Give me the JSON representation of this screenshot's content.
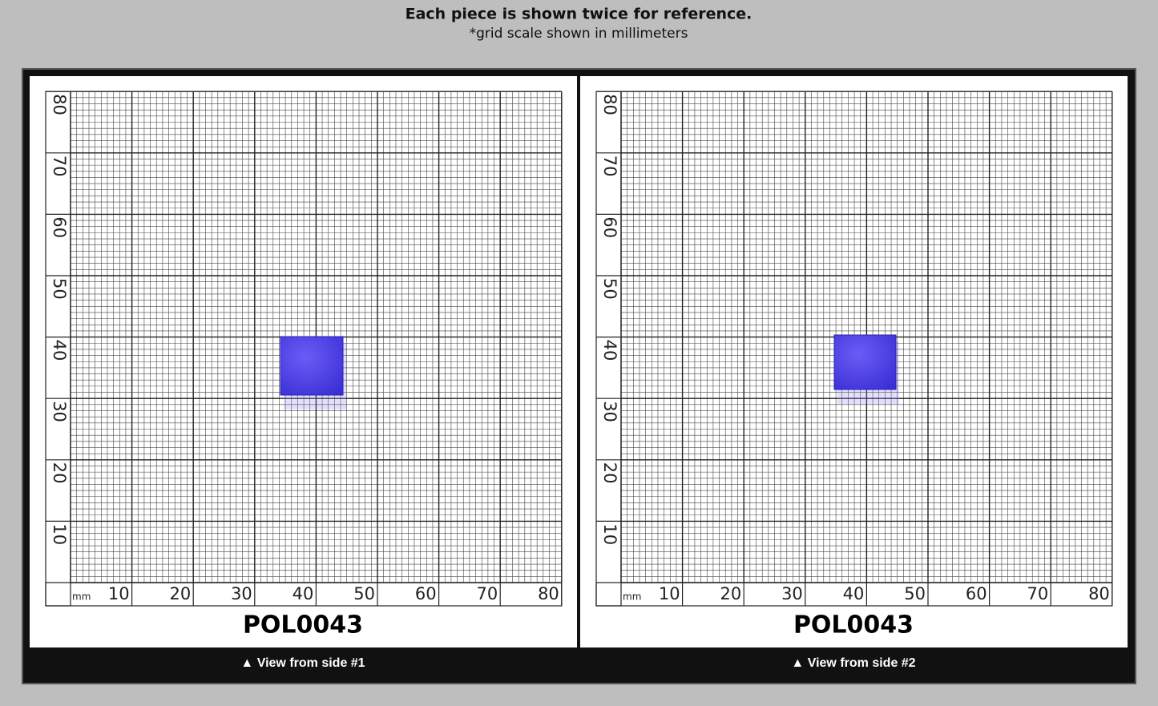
{
  "header": {
    "title": "Each piece is shown twice for reference.",
    "subtitle": "*grid scale shown in millimeters"
  },
  "scale": {
    "unit": "mm",
    "ticks": [
      10,
      20,
      30,
      40,
      50,
      60,
      70,
      80
    ]
  },
  "panels": [
    {
      "label": "POL0043",
      "caption": "▲ View from side #1"
    },
    {
      "label": "POL0043",
      "caption": "▲ View from side #2"
    }
  ]
}
